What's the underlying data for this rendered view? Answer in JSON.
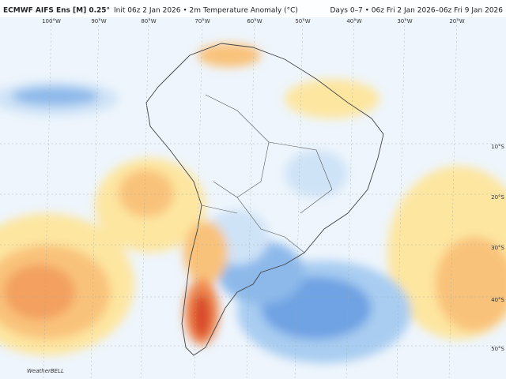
{
  "header": {
    "title": "ECMWF AIFS Ens [M] 0.25°",
    "subtitle": "Init 06z 2 Jan 2026 • 2m Temperature Anomaly (°C)",
    "days": "Days 0–7 • 06z Fri 2 Jan 2026–06z Fri 9 Jan 2026"
  },
  "map": {
    "lon_labels": [
      "100°W",
      "90°W",
      "80°W",
      "70°W",
      "60°W",
      "50°W",
      "40°W",
      "30°W",
      "20°W"
    ],
    "lat_labels": [
      "10°S",
      "20°S",
      "30°S",
      "40°S",
      "50°S"
    ],
    "logo": "WeatherBELL"
  }
}
